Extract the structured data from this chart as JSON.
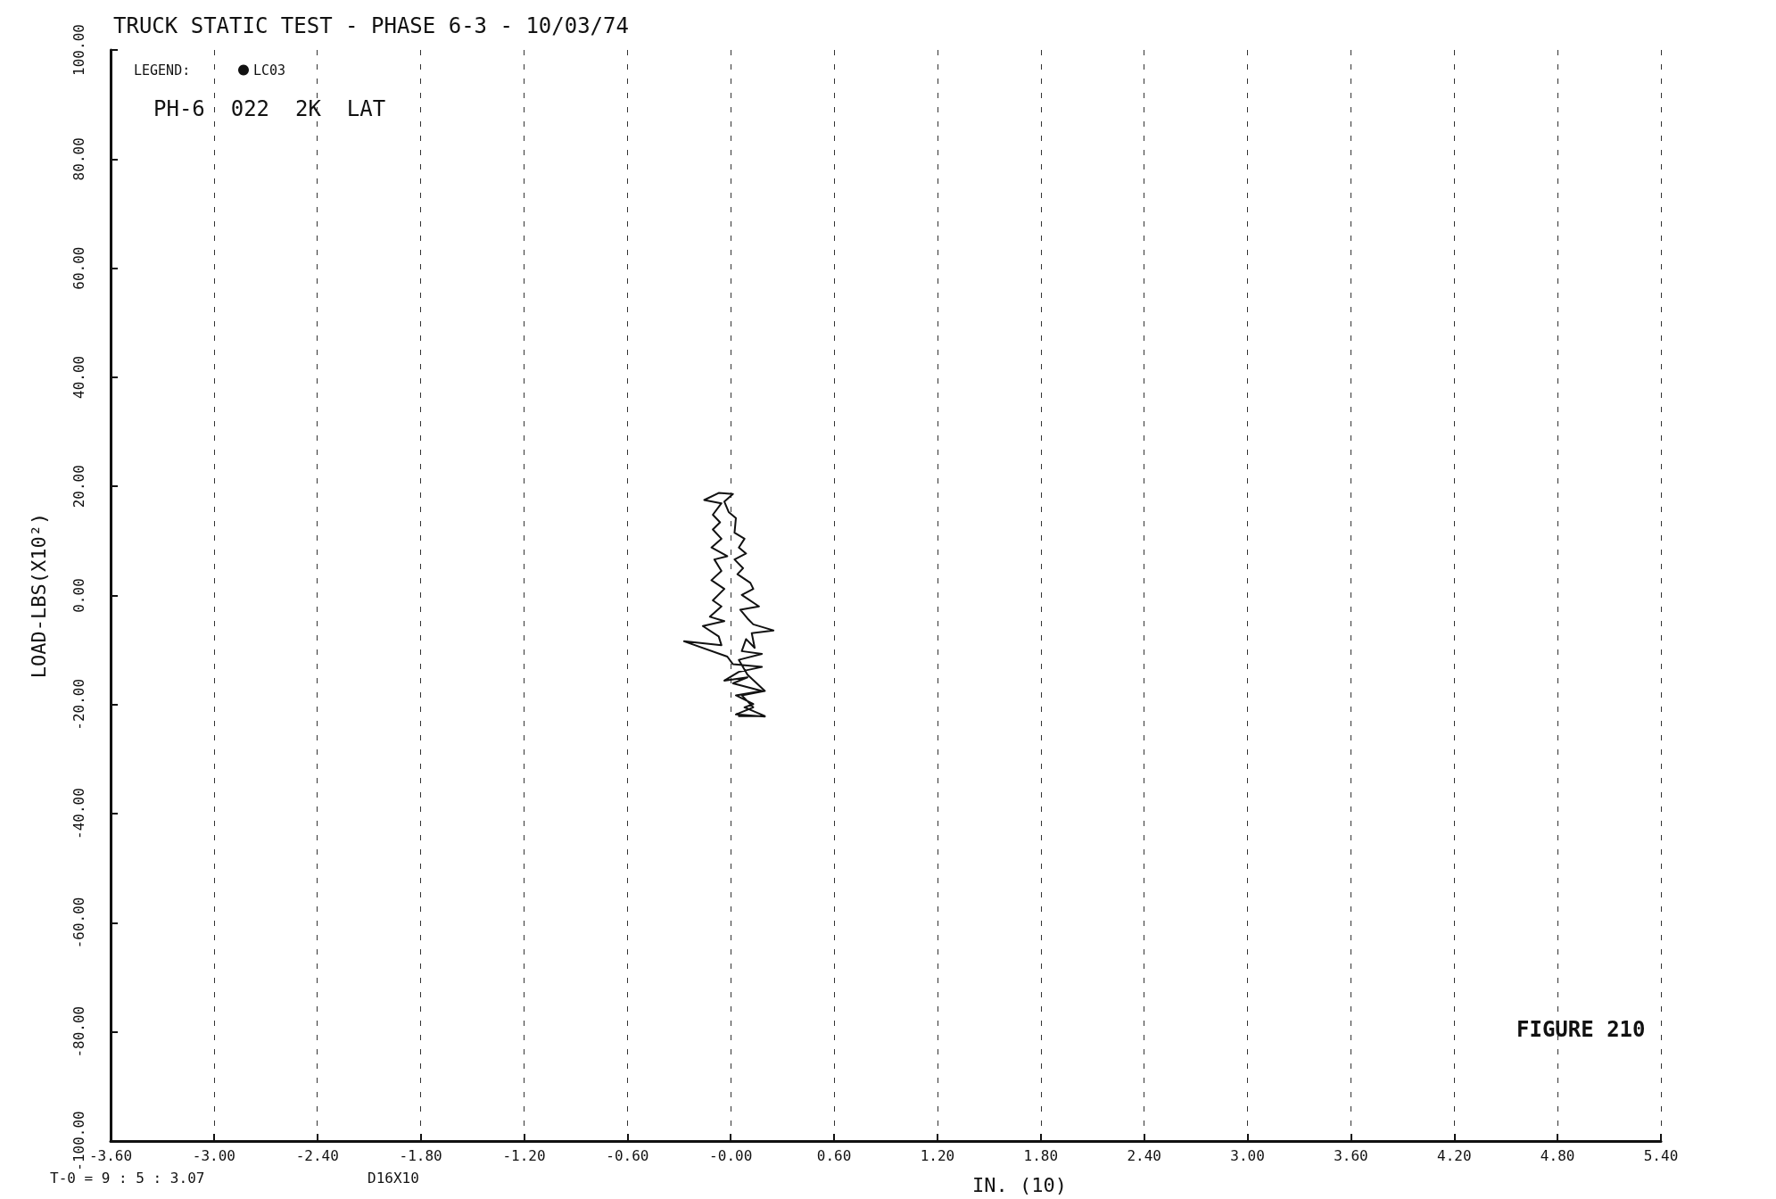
{
  "chart_data": {
    "type": "line",
    "title": "TRUCK STATIC TEST - PHASE 6-3 - 10/03/74",
    "subtitle": "PH-6  022  2K  LAT",
    "xlabel": "IN. (10)",
    "ylabel": "LOAD-LBS(X10²)",
    "legend_title": "LEGEND:",
    "annotations": [
      "T-0 = 9 : 5 : 3.07",
      "D16X10",
      "FIGURE 210"
    ],
    "xlim": [
      -3.6,
      5.4
    ],
    "xticks": [
      {
        "value": -3.6,
        "label": "-3.60"
      },
      {
        "value": -3.0,
        "label": "-3.00"
      },
      {
        "value": -2.4,
        "label": "-2.40"
      },
      {
        "value": -1.8,
        "label": "-1.80"
      },
      {
        "value": -1.2,
        "label": "-1.20"
      },
      {
        "value": -0.6,
        "label": "-0.60"
      },
      {
        "value": 0,
        "label": "-0.00"
      },
      {
        "value": 0.6,
        "label": "0.60"
      },
      {
        "value": 1.2,
        "label": "1.20"
      },
      {
        "value": 1.8,
        "label": "1.80"
      },
      {
        "value": 2.4,
        "label": "2.40"
      },
      {
        "value": 3.0,
        "label": "3.00"
      },
      {
        "value": 3.6,
        "label": "3.60"
      },
      {
        "value": 4.2,
        "label": "4.20"
      },
      {
        "value": 4.8,
        "label": "4.80"
      },
      {
        "value": 5.4,
        "label": "5.40"
      }
    ],
    "ylim": [
      -100,
      100
    ],
    "yticks": [
      {
        "value": -100,
        "label": "-100.00"
      },
      {
        "value": -80,
        "label": "-80.00"
      },
      {
        "value": -60,
        "label": "-60.00"
      },
      {
        "value": -40,
        "label": "-40.00"
      },
      {
        "value": -20,
        "label": "-20.00"
      },
      {
        "value": 0,
        "label": "0.00"
      },
      {
        "value": 20,
        "label": "20.00"
      },
      {
        "value": 40,
        "label": "40.00"
      },
      {
        "value": 60,
        "label": "60.00"
      },
      {
        "value": 80,
        "label": "80.00"
      },
      {
        "value": 100,
        "label": "100.00"
      }
    ],
    "grid": "x",
    "legend": "top left",
    "marker": "none",
    "line_style": "solid",
    "series": [
      {
        "name": "LC03",
        "color": "#111111",
        "x": [
          0.047,
          0.198,
          0.08,
          0.131,
          0.03,
          0.181,
          0.013,
          0.097,
          -0.037,
          0.047,
          0.181,
          0.013,
          -0.02,
          -0.271,
          -0.054,
          -0.07,
          -0.162,
          -0.037,
          -0.121,
          -0.054,
          -0.104,
          -0.037,
          -0.112,
          -0.054,
          -0.095,
          -0.02,
          -0.112,
          -0.054,
          -0.104,
          -0.062,
          -0.104,
          -0.054,
          -0.154,
          -0.07,
          0.013,
          -0.037,
          -0.012,
          0.03,
          0.022,
          0.08,
          0.047,
          0.089,
          0.022,
          0.072,
          0.039,
          0.114,
          0.131,
          0.064,
          0.164,
          0.055,
          0.097,
          0.131,
          0.248,
          0.122,
          0.139,
          0.089,
          0.064,
          0.181,
          0.047,
          0.097,
          0.198,
          0.064,
          0.131,
          0.03,
          0.198
        ],
        "values": [
          -22.1,
          -22.1,
          -20.5,
          -19.9,
          -18.3,
          -17.5,
          -16.1,
          -15.0,
          -15.6,
          -14.0,
          -13.1,
          -12.6,
          -11.2,
          -8.4,
          -9.1,
          -7.5,
          -5.6,
          -4.7,
          -3.9,
          -2.0,
          -0.9,
          1.2,
          2.8,
          4.5,
          6.6,
          7.2,
          8.8,
          10.4,
          12.1,
          13.4,
          14.8,
          16.9,
          17.5,
          18.8,
          18.6,
          17.2,
          15.3,
          14.2,
          11.5,
          10.4,
          8.8,
          7.7,
          6.6,
          5.0,
          3.9,
          2.3,
          1.2,
          0.1,
          -2.0,
          -2.6,
          -4.2,
          -5.3,
          -6.4,
          -6.9,
          -9.6,
          -8.0,
          -10.2,
          -10.7,
          -11.8,
          -14.5,
          -17.5,
          -18.3,
          -20.5,
          -21.8,
          -22.2
        ]
      }
    ]
  }
}
